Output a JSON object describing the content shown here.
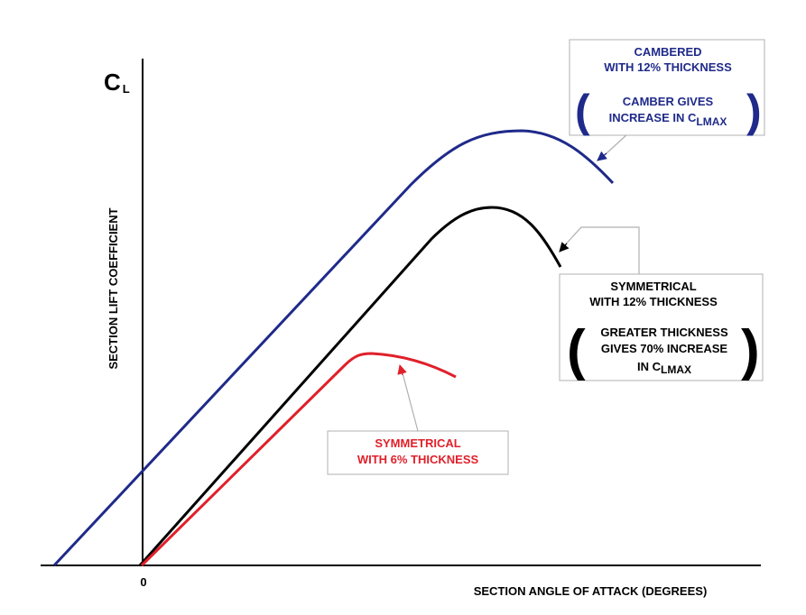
{
  "axes": {
    "y_label": "SECTION LIFT COEFFICIENT",
    "x_label": "SECTION ANGLE OF ATTACK (DEGREES)",
    "origin_label": "0",
    "cl_main": "C",
    "cl_sub": "L"
  },
  "curves": {
    "cambered": {
      "color": "#1f2a8a",
      "line1": "CAMBERED",
      "line2": "WITH 12% THICKNESS",
      "note1": "CAMBER GIVES",
      "note2_prefix": "INCREASE IN C",
      "note2_sub": "LMAX"
    },
    "symmetrical_12": {
      "color": "#000000",
      "line1": "SYMMETRICAL",
      "line2": "WITH 12% THICKNESS",
      "note1": "GREATER THICKNESS",
      "note2": "GIVES 70% INCREASE",
      "note3_prefix": "IN C",
      "note3_sub": "LMAX"
    },
    "symmetrical_6": {
      "color": "#e0202a",
      "line1": "SYMMETRICAL",
      "line2": "WITH 6% THICKNESS"
    }
  }
}
